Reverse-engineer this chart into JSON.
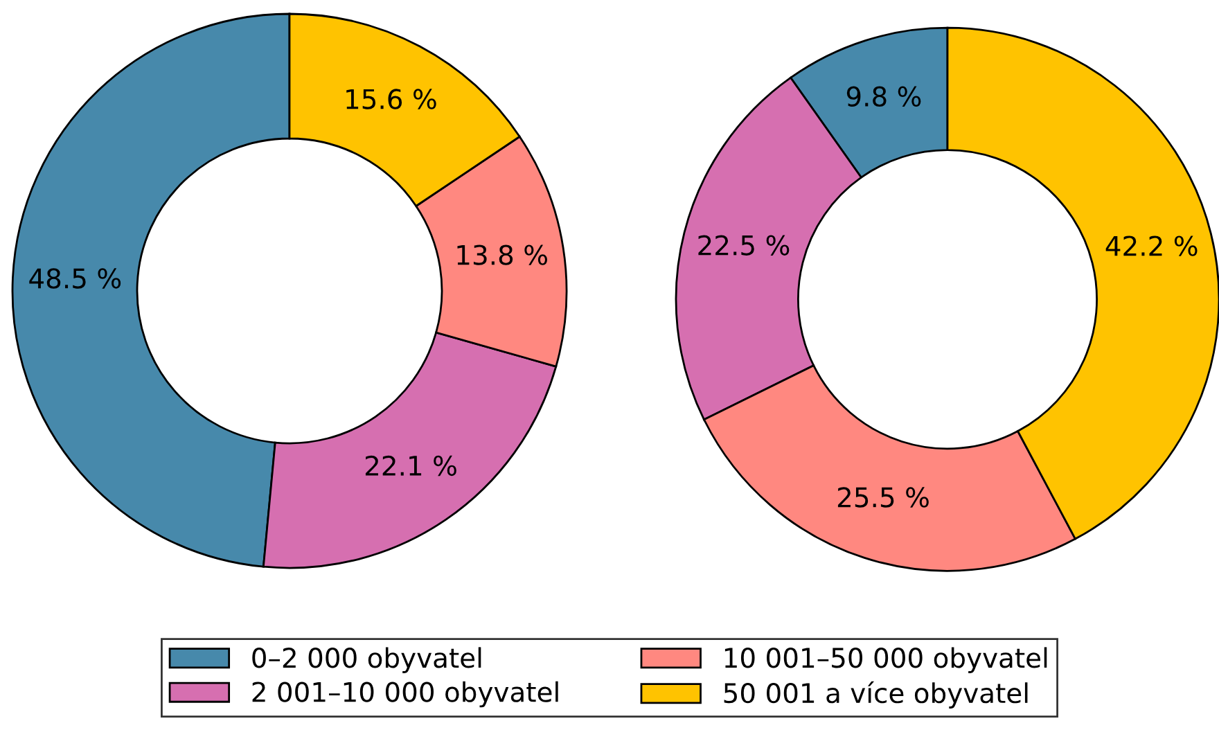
{
  "chart_data": [
    {
      "type": "donut",
      "categories": [
        "0–2 000 obyvatel",
        "2 001–10 000 obyvatel",
        "10 001–50 000 obyvatel",
        "50 001 a více obyvatel"
      ],
      "values": [
        48.5,
        22.1,
        13.8,
        15.6
      ],
      "colors": [
        "#4789ab",
        "#d66fb0",
        "#ff8880",
        "#ffc300"
      ],
      "value_labels": [
        "48.5 %",
        "22.1 %",
        "13.8 %",
        "15.6 %"
      ],
      "legend": "bottom"
    },
    {
      "type": "donut",
      "categories": [
        null,
        null,
        null,
        null
      ],
      "values": [
        9.8,
        22.5,
        25.5,
        42.2
      ],
      "colors": [
        "#4789ab",
        "#d66fb0",
        "#ff8880",
        "#ffc300"
      ],
      "value_labels": [
        "9.8 %",
        "22.5 %",
        "25.5 %",
        "42.2 %"
      ]
    }
  ]
}
